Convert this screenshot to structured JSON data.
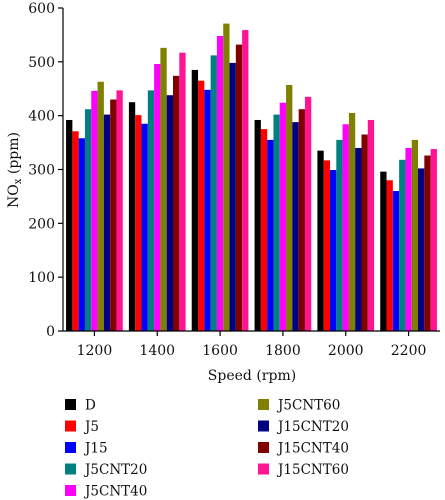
{
  "chart_data": {
    "type": "bar",
    "xlabel": "Speed (rpm)",
    "ylabel_main": "NO",
    "ylabel_sub": "x",
    "ylabel_unit": " (ppm)",
    "ylim": [
      0,
      600
    ],
    "yticks": [
      0,
      100,
      200,
      300,
      400,
      500,
      600
    ],
    "grid": false,
    "legend_position": "bottom",
    "categories": [
      "1200",
      "1400",
      "1600",
      "1800",
      "2000",
      "2200"
    ],
    "series": [
      {
        "name": "D",
        "color": "#000000",
        "values": [
          392,
          425,
          485,
          392,
          335,
          296
        ]
      },
      {
        "name": "J5",
        "color": "#ff0000",
        "values": [
          371,
          401,
          465,
          375,
          317,
          280
        ]
      },
      {
        "name": "J15",
        "color": "#0000ff",
        "values": [
          358,
          385,
          448,
          355,
          299,
          260
        ]
      },
      {
        "name": "J5CNT20",
        "color": "#008080",
        "values": [
          412,
          447,
          512,
          402,
          355,
          318
        ]
      },
      {
        "name": "J5CNT40",
        "color": "#ff00ff",
        "values": [
          446,
          496,
          548,
          424,
          384,
          340
        ]
      },
      {
        "name": "J5CNT60",
        "color": "#808000",
        "values": [
          463,
          526,
          571,
          457,
          405,
          355
        ]
      },
      {
        "name": "J15CNT20",
        "color": "#000080",
        "values": [
          402,
          438,
          498,
          388,
          340,
          302
        ]
      },
      {
        "name": "J15CNT40",
        "color": "#800000",
        "values": [
          430,
          474,
          532,
          412,
          365,
          326
        ]
      },
      {
        "name": "J15CNT60",
        "color": "#ff1493",
        "values": [
          447,
          517,
          559,
          435,
          392,
          338
        ]
      }
    ]
  }
}
